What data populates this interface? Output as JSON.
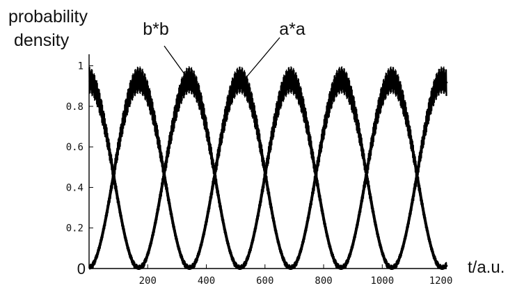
{
  "chart_data": {
    "type": "line",
    "ylabel_line1": "probability",
    "ylabel_line2": "density",
    "xlabel": "t/a.u.",
    "xlim": [
      0,
      1220
    ],
    "ylim": [
      0,
      1.05
    ],
    "grid": false,
    "x_ticks": [
      {
        "value": 200,
        "label": "200"
      },
      {
        "value": 400,
        "label": "400"
      },
      {
        "value": 600,
        "label": "600"
      },
      {
        "value": 800,
        "label": "800"
      },
      {
        "value": 1000,
        "label": "1000"
      },
      {
        "value": 1200,
        "label": "1200"
      }
    ],
    "y_ticks": [
      {
        "value": 0,
        "label": "0"
      },
      {
        "value": 0.2,
        "label": "0.2"
      },
      {
        "value": 0.4,
        "label": "0.4"
      },
      {
        "value": 0.6,
        "label": "0.6"
      },
      {
        "value": 0.8,
        "label": "0.8"
      },
      {
        "value": 1,
        "label": "1"
      }
    ],
    "series": [
      {
        "name": "a*a",
        "period": 345,
        "x_peak": 515,
        "peak": 0.93,
        "trough": 0.0,
        "fast_oscillation_amplitude": 0.07,
        "fast_oscillation_period": 2.5,
        "color": "#000000"
      },
      {
        "name": "b*b",
        "period": 345,
        "x_peak": 342,
        "peak": 0.93,
        "trough": 0.0,
        "fast_oscillation_amplitude": 0.07,
        "fast_oscillation_period": 2.5,
        "color": "#000000"
      }
    ],
    "annotations": [
      {
        "text": "b*b",
        "target_series": "b*b",
        "target_x": 335,
        "target_y": 0.94
      },
      {
        "text": "a*a",
        "target_series": "a*a",
        "target_x": 540,
        "target_y": 0.95
      }
    ]
  }
}
